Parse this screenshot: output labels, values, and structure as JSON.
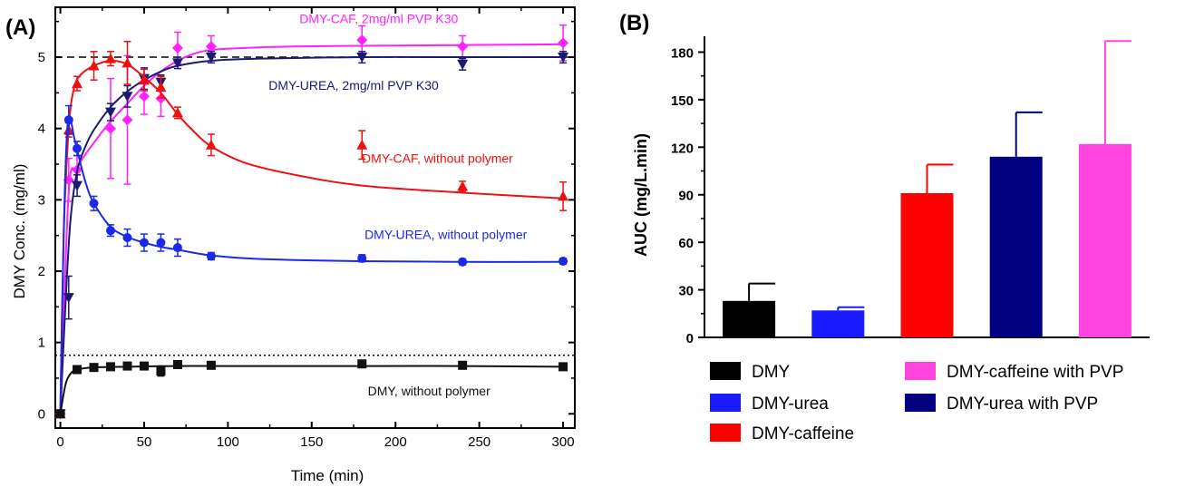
{
  "chart_data": [
    {
      "type": "line",
      "panel_label": "(A)",
      "xlabel": "Time (min)",
      "ylabel": "DMY Conc. (mg/ml)",
      "xlim": [
        -3,
        307
      ],
      "ylim": [
        -0.2,
        5.7
      ],
      "xticks": [
        "0",
        "50",
        "100",
        "150",
        "200",
        "250",
        "300"
      ],
      "yticks": [
        "0",
        "1",
        "2",
        "3",
        "4",
        "5"
      ],
      "reference_lines": [
        {
          "name": "dashed-reference-line",
          "y": 5.0,
          "style": "dashed"
        },
        {
          "name": "dotted-reference-line",
          "y": 0.82,
          "style": "dotted"
        }
      ],
      "series": [
        {
          "name": "DMY-CAF, 2mg/ml PVP K30",
          "color": "#ff22ff",
          "marker": "diamond",
          "x": [
            0,
            5,
            10,
            30,
            40,
            50,
            60,
            70,
            90,
            180,
            240,
            300
          ],
          "y": [
            0.0,
            3.28,
            3.42,
            4.0,
            4.12,
            4.45,
            4.42,
            5.13,
            5.15,
            5.24,
            5.15,
            5.2
          ],
          "err": [
            0.0,
            0.3,
            0.2,
            0.7,
            0.9,
            0.25,
            0.25,
            0.22,
            0.15,
            0.2,
            0.15,
            0.25
          ],
          "fit_x": [
            0,
            5,
            10,
            20,
            30,
            40,
            50,
            60,
            70,
            80,
            90,
            110,
            140,
            180,
            240,
            300
          ],
          "fit_y": [
            0.0,
            3.1,
            3.45,
            3.8,
            4.1,
            4.35,
            4.6,
            4.8,
            4.95,
            5.05,
            5.1,
            5.13,
            5.15,
            5.16,
            5.17,
            5.18
          ]
        },
        {
          "name": "DMY-UREA, 2mg/ml PVP K30",
          "color": "#1a1a70",
          "marker": "triangle-down",
          "x": [
            0,
            5,
            10,
            30,
            40,
            50,
            60,
            70,
            90,
            180,
            240,
            300
          ],
          "y": [
            0.0,
            1.63,
            3.2,
            4.23,
            4.45,
            4.7,
            4.65,
            4.92,
            5.0,
            5.0,
            4.9,
            5.0
          ],
          "err": [
            0.0,
            0.3,
            0.15,
            0.12,
            0.15,
            0.15,
            0.1,
            0.08,
            0.08,
            0.08,
            0.08,
            0.08
          ],
          "fit_x": [
            0,
            3,
            6,
            10,
            15,
            20,
            30,
            40,
            50,
            60,
            70,
            90,
            120,
            180,
            240,
            300
          ],
          "fit_y": [
            0.0,
            1.5,
            2.7,
            3.4,
            3.75,
            3.98,
            4.3,
            4.52,
            4.68,
            4.8,
            4.88,
            4.95,
            4.98,
            5.0,
            5.0,
            5.0
          ]
        },
        {
          "name": "DMY-CAF, without polymer",
          "color": "#ee1111",
          "marker": "triangle-up",
          "x": [
            0,
            5,
            10,
            20,
            30,
            40,
            50,
            60,
            70,
            90,
            180,
            240,
            300
          ],
          "y": [
            0.0,
            3.98,
            4.63,
            4.88,
            4.98,
            4.92,
            4.68,
            4.58,
            4.22,
            3.77,
            3.77,
            3.19,
            3.05
          ],
          "err": [
            0.0,
            0.1,
            0.1,
            0.2,
            0.1,
            0.3,
            0.15,
            0.15,
            0.08,
            0.15,
            0.2,
            0.07,
            0.2
          ],
          "fit_x": [
            0,
            2,
            5,
            8,
            12,
            20,
            30,
            40,
            50,
            60,
            70,
            80,
            90,
            110,
            140,
            180,
            240,
            300
          ],
          "fit_y": [
            0.0,
            2.5,
            4.0,
            4.55,
            4.75,
            4.88,
            4.95,
            4.9,
            4.72,
            4.5,
            4.2,
            3.95,
            3.75,
            3.52,
            3.35,
            3.2,
            3.1,
            3.02
          ]
        },
        {
          "name": "DMY-UREA, without polymer",
          "color": "#1a2ae8",
          "marker": "circle",
          "x": [
            0,
            5,
            10,
            20,
            30,
            40,
            50,
            60,
            70,
            90,
            180,
            240,
            300
          ],
          "y": [
            0.0,
            4.12,
            3.72,
            2.95,
            2.57,
            2.47,
            2.4,
            2.4,
            2.33,
            2.21,
            2.18,
            2.13,
            2.14
          ],
          "err": [
            0.0,
            0.2,
            0.1,
            0.1,
            0.08,
            0.12,
            0.12,
            0.12,
            0.12,
            0.05,
            0.05,
            0.04,
            0.04
          ],
          "fit_x": [
            0,
            2,
            4,
            6,
            8,
            10,
            15,
            20,
            30,
            40,
            50,
            60,
            70,
            90,
            120,
            180,
            240,
            300
          ],
          "fit_y": [
            0.0,
            2.5,
            3.95,
            4.12,
            3.9,
            3.7,
            3.25,
            2.95,
            2.62,
            2.48,
            2.4,
            2.34,
            2.3,
            2.22,
            2.17,
            2.14,
            2.13,
            2.13
          ]
        },
        {
          "name": "DMY, without polymer",
          "color": "#111111",
          "marker": "square",
          "x": [
            0,
            10,
            20,
            30,
            40,
            50,
            60,
            70,
            90,
            180,
            240,
            300
          ],
          "y": [
            0.0,
            0.62,
            0.65,
            0.66,
            0.67,
            0.67,
            0.6,
            0.69,
            0.68,
            0.7,
            0.68,
            0.66
          ],
          "err": [
            0.0,
            0.04,
            0.04,
            0.03,
            0.03,
            0.03,
            0.07,
            0.03,
            0.03,
            0.03,
            0.03,
            0.03
          ],
          "fit_x": [
            0,
            3,
            6,
            10,
            20,
            40,
            70,
            100,
            180,
            240,
            300
          ],
          "fit_y": [
            0.0,
            0.4,
            0.56,
            0.62,
            0.65,
            0.66,
            0.67,
            0.67,
            0.67,
            0.67,
            0.66
          ]
        }
      ],
      "annotations": [
        {
          "text": "DMY-CAF, 2mg/ml PVP K30",
          "color": "#ff22ff",
          "at_x": 190,
          "at_y": 5.48
        },
        {
          "text": "DMY-UREA, 2mg/ml PVP K30",
          "color": "#1a1a70",
          "at_x": 175,
          "at_y": 4.54
        },
        {
          "text": "DMY-CAF, without polymer",
          "color": "#ee1111",
          "at_x": 225,
          "at_y": 3.52
        },
        {
          "text": "DMY-UREA, without polymer",
          "color": "#1a2ae8",
          "at_x": 230,
          "at_y": 2.45
        },
        {
          "text": "DMY, without polymer",
          "color": "#111111",
          "at_x": 220,
          "at_y": 0.26
        }
      ]
    },
    {
      "type": "bar",
      "panel_label": "(B)",
      "ylabel": "AUC (mg/L.min)",
      "ylim": [
        0,
        190
      ],
      "yticks": [
        "0",
        "30",
        "60",
        "90",
        "120",
        "150",
        "180"
      ],
      "categories": [
        "DMY",
        "DMY-urea",
        "DMY-caffeine",
        "DMY-urea with PVP",
        "DMY-caffeine with PVP"
      ],
      "values": [
        23,
        17,
        91,
        114,
        122
      ],
      "errors": [
        11,
        2,
        18,
        28,
        65
      ],
      "colors": [
        "#000000",
        "#1a1aff",
        "#ff0000",
        "#000080",
        "#ff44dd"
      ],
      "legend": [
        {
          "label": "DMY",
          "color": "#000000"
        },
        {
          "label": "DMY-urea",
          "color": "#1a1aff"
        },
        {
          "label": "DMY-caffeine",
          "color": "#ff0000"
        },
        {
          "label": "DMY-caffeine with PVP",
          "color": "#ff44dd"
        },
        {
          "label": "DMY-urea with PVP",
          "color": "#000080"
        }
      ]
    }
  ]
}
